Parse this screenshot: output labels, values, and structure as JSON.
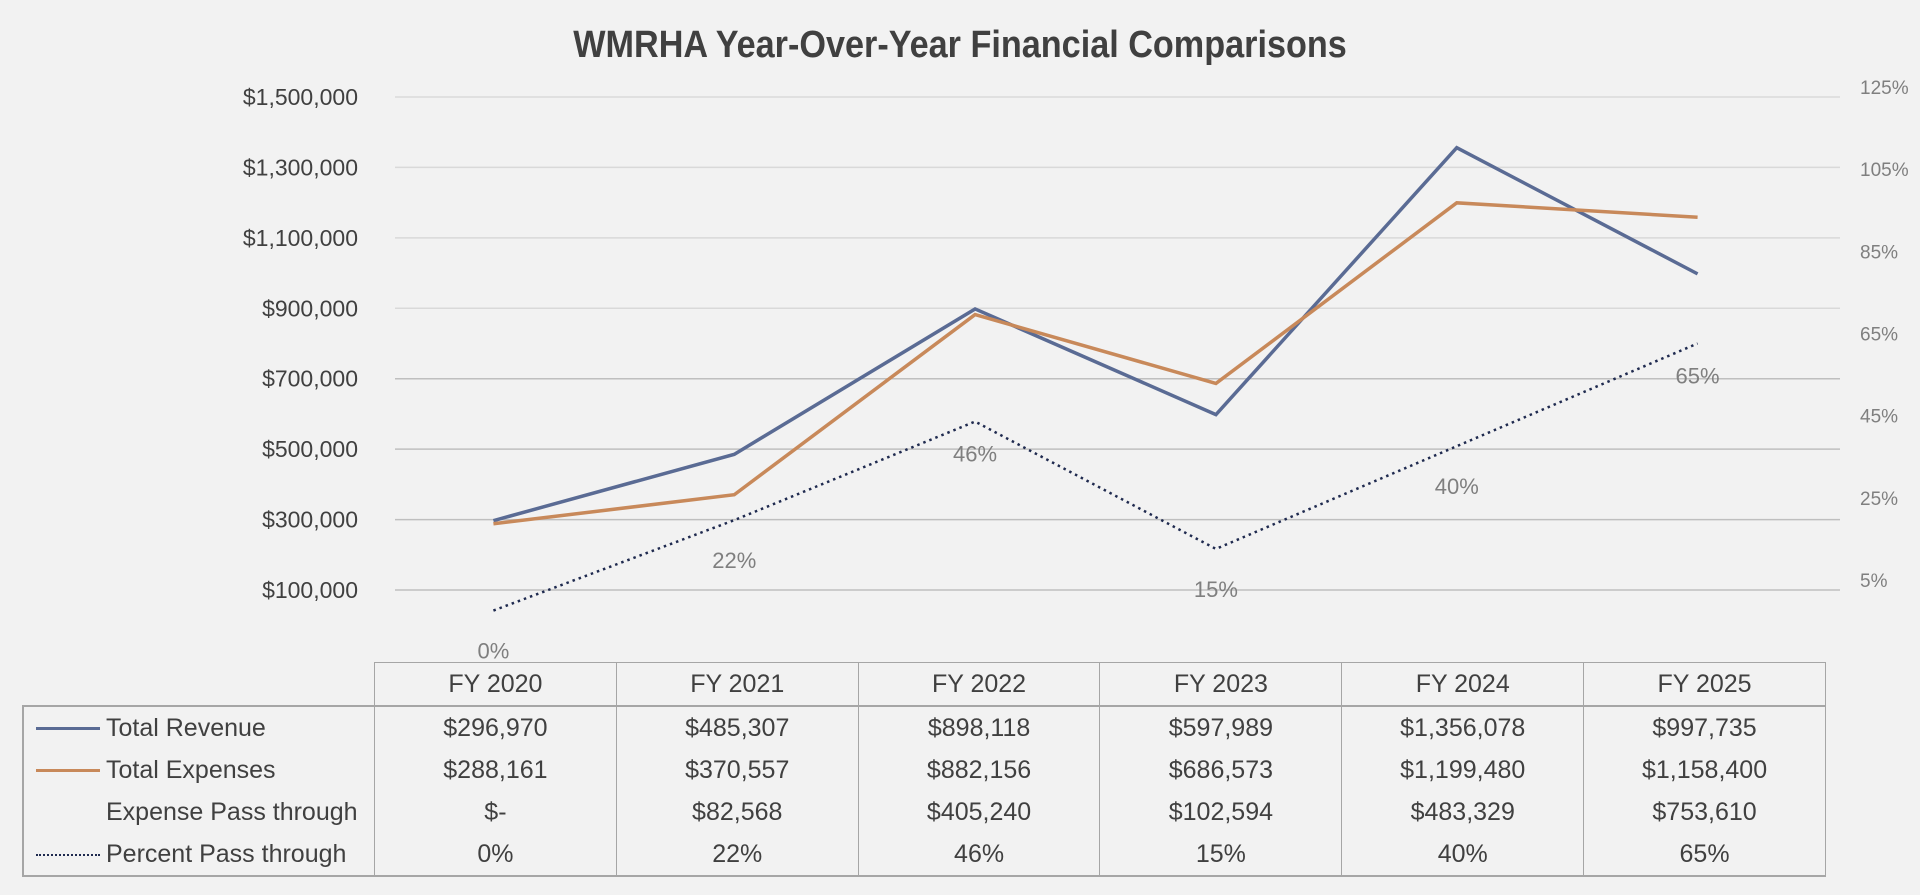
{
  "chart_data": {
    "type": "line",
    "title": "WMRHA Year-Over-Year Financial Comparisons",
    "categories": [
      "FY 2020",
      "FY 2021",
      "FY 2022",
      "FY 2023",
      "FY 2024",
      "FY 2025"
    ],
    "y_axis": {
      "ylim": [
        100000,
        1500000
      ],
      "ticks": [
        100000,
        300000,
        500000,
        700000,
        900000,
        1100000,
        1300000,
        1500000
      ],
      "tick_labels": [
        "$100,000",
        "$300,000",
        "$500,000",
        "$700,000",
        "$900,000",
        "$1,100,000",
        "$1,300,000",
        "$1,500,000"
      ]
    },
    "y2_axis": {
      "ylim": [
        5,
        125
      ],
      "ticks": [
        5,
        25,
        45,
        65,
        85,
        105,
        125
      ],
      "tick_labels": [
        "5%",
        "25%",
        "45%",
        "65%",
        "85%",
        "105%",
        "125%"
      ]
    },
    "grid": true,
    "legend": "data-table-bottom",
    "series": [
      {
        "name": "Total Revenue",
        "axis": "left",
        "color": "#5a6b94",
        "style": "solid",
        "values": [
          296970,
          485307,
          898118,
          597989,
          1356078,
          997735
        ],
        "labels": [
          "$296,970",
          "$485,307",
          "$898,118",
          "$597,989",
          "$1,356,078",
          "$997,735"
        ]
      },
      {
        "name": "Total Expenses",
        "axis": "left",
        "color": "#c8895a",
        "style": "solid",
        "values": [
          288161,
          370557,
          882156,
          686573,
          1199480,
          1158400
        ],
        "labels": [
          "$288,161",
          "$370,557",
          "$882,156",
          "$686,573",
          "$1,199,480",
          "$1,158,400"
        ]
      },
      {
        "name": "Expense Pass through",
        "axis": "none",
        "color": null,
        "style": "none",
        "values": [
          0,
          82568,
          405240,
          102594,
          483329,
          753610
        ],
        "labels": [
          "$-",
          "$82,568",
          "$405,240",
          "$102,594",
          "$483,329",
          "$753,610"
        ]
      },
      {
        "name": "Percent Pass through",
        "axis": "right",
        "color": "#1f2a4f",
        "style": "dotted",
        "values": [
          0,
          22,
          46,
          15,
          40,
          65
        ],
        "labels": [
          "0%",
          "22%",
          "46%",
          "15%",
          "40%",
          "65%"
        ],
        "data_labels": [
          "0%",
          "22%",
          "46%",
          "15%",
          "40%",
          "65%"
        ]
      }
    ]
  }
}
